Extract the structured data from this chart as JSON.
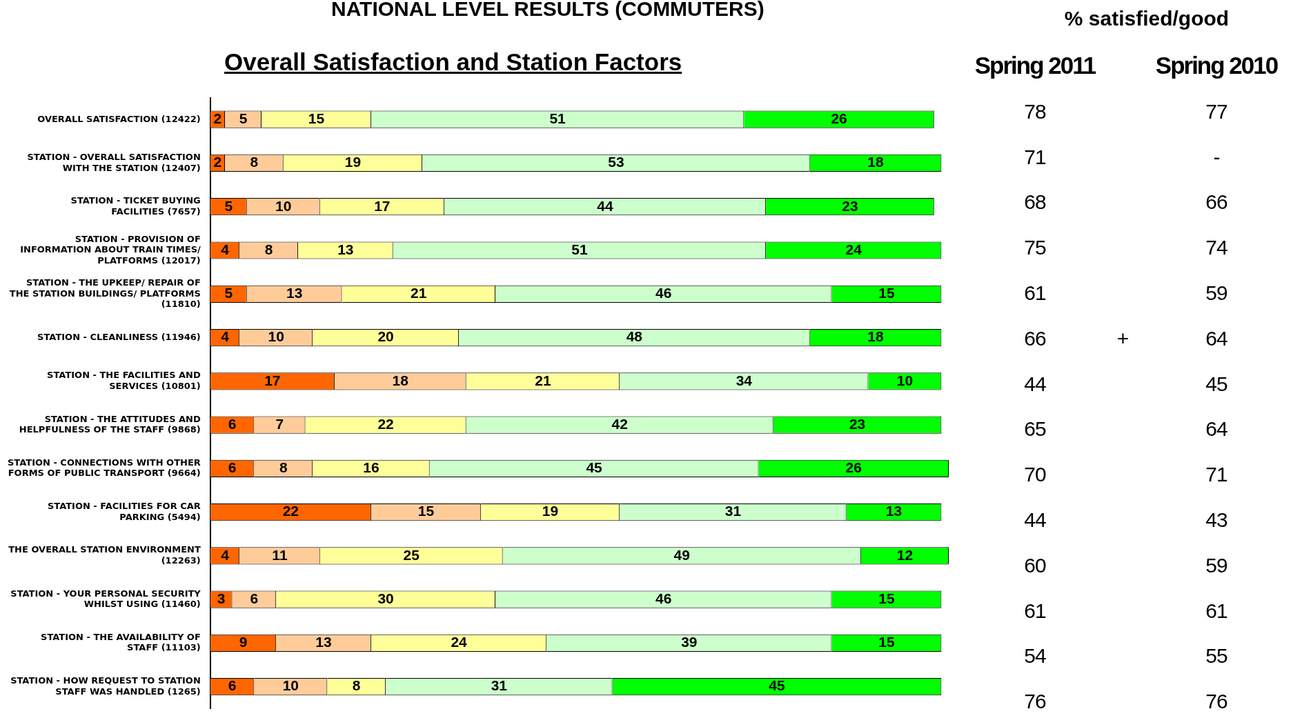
{
  "chart_data": [
    {
      "type": "bar",
      "title": "NATIONAL LEVEL RESULTS (COMMUTERS)",
      "subtitle": "Overall Satisfaction and Station Factors",
      "orientation": "horizontal",
      "stacked": true,
      "data_labels": true,
      "grid": false,
      "legend": false,
      "tick_labels": "y",
      "xlim": [
        0,
        101
      ],
      "categories": [
        "OVERALL SATISFACTION (12422)",
        "STATION - OVERALL SATISFACTION WITH THE STATION (12407)",
        "STATION - TICKET BUYING FACILITIES (7657)",
        "STATION - PROVISION OF INFORMATION ABOUT TRAIN TIMES/ PLATFORMS (12017)",
        "STATION - THE UPKEEP/ REPAIR OF THE STATION BUILDINGS/ PLATFORMS (11810)",
        "STATION - CLEANLINESS (11946)",
        "STATION - THE FACILITIES AND SERVICES (10801)",
        "STATION - THE ATTITUDES AND HELPFULNESS OF THE STAFF (9868)",
        "STATION - CONNECTIONS WITH OTHER FORMS OF PUBLIC TRANSPORT (9664)",
        "STATION - FACILITIES FOR CAR PARKING (5494)",
        "THE OVERALL STATION ENVIRONMENT (12263)",
        "STATION - YOUR PERSONAL SECURITY WHILST USING (11460)",
        "STATION - THE AVAILABILITY OF STAFF (11103)",
        "STATION - HOW REQUEST TO STATION STAFF WAS HANDLED (1265)"
      ],
      "series": [
        {
          "color": "#ff6600",
          "values": [
            2,
            2,
            5,
            4,
            5,
            4,
            17,
            6,
            6,
            22,
            4,
            3,
            9,
            6
          ]
        },
        {
          "color": "#ffcc99",
          "values": [
            5,
            8,
            10,
            8,
            13,
            10,
            18,
            7,
            8,
            15,
            11,
            6,
            13,
            10
          ]
        },
        {
          "color": "#ffff99",
          "values": [
            15,
            19,
            17,
            13,
            21,
            20,
            21,
            22,
            16,
            19,
            25,
            30,
            24,
            8
          ]
        },
        {
          "color": "#ccffcc",
          "values": [
            51,
            53,
            44,
            51,
            46,
            48,
            34,
            42,
            45,
            31,
            49,
            46,
            39,
            31
          ]
        },
        {
          "color": "#00ff00",
          "values": [
            26,
            18,
            23,
            24,
            15,
            18,
            10,
            23,
            26,
            13,
            12,
            15,
            15,
            45
          ]
        }
      ]
    },
    {
      "type": "other",
      "title": "% satisfied/good",
      "categories": [
        "Spring 2011",
        null,
        "Spring 2010"
      ],
      "cell_labels": [
        [
          "78",
          null,
          "77"
        ],
        [
          "71",
          null,
          "-"
        ],
        [
          "68",
          null,
          "66"
        ],
        [
          "75",
          null,
          "74"
        ],
        [
          "61",
          null,
          "59"
        ],
        [
          "66",
          "+",
          "64"
        ],
        [
          "44",
          null,
          "45"
        ],
        [
          "65",
          null,
          "64"
        ],
        [
          "70",
          null,
          "71"
        ],
        [
          "44",
          null,
          "43"
        ],
        [
          "60",
          null,
          "59"
        ],
        [
          "61",
          null,
          "61"
        ],
        [
          "54",
          null,
          "55"
        ],
        [
          "76",
          null,
          "76"
        ]
      ]
    }
  ]
}
